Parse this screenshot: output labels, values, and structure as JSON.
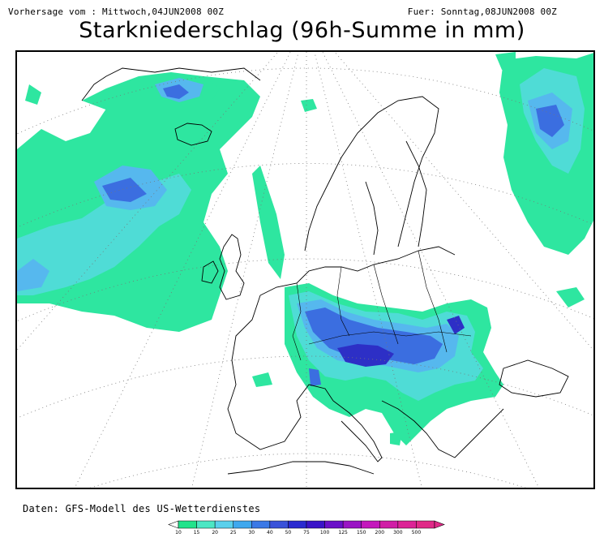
{
  "header": {
    "forecast_from": "Vorhersage vom : Mittwoch,04JUN2008 00Z",
    "valid_for": "Fuer: Sonntag,08JUN2008 00Z",
    "title": "Starkniederschlag (96h-Summe in mm)"
  },
  "footer": {
    "source": "Daten: GFS-Modell des US-Wetterdienstes"
  },
  "legend": {
    "unit": "mm",
    "ticks": [
      "10",
      "15",
      "20",
      "25",
      "30",
      "40",
      "50",
      "75",
      "100",
      "125",
      "150",
      "200",
      "300",
      "500"
    ],
    "colors": [
      "#22e38b",
      "#4ce7c4",
      "#5ad0ec",
      "#3fa8ee",
      "#3b79e6",
      "#3a52d9",
      "#2a2ad0",
      "#3a14c8",
      "#6a10c8",
      "#9a14c4",
      "#c418bc",
      "#d01ea6",
      "#dc2496",
      "#e02a88"
    ]
  },
  "colors": {
    "light_green": "#2ee6a0",
    "aqua": "#4fdcd6",
    "sky": "#56b8ee",
    "mid_blue": "#3b6ee0",
    "deep_blue": "#2d2fc6",
    "coast": "#000000",
    "grid": "#777777"
  },
  "map": {
    "projection": "polar-stereographic",
    "graticule": "dotted",
    "region": "Europe / North Atlantic"
  }
}
